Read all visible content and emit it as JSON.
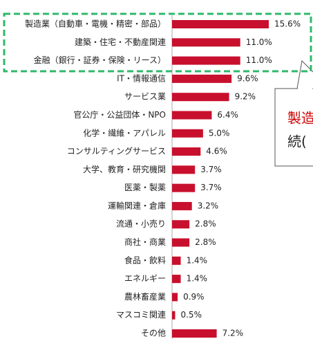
{
  "chart_data": {
    "type": "bar",
    "orientation": "horizontal",
    "color": "#c8102e",
    "categories": [
      "製造業（自動車・電機・精密・部品）",
      "建築・住宅・不動産関連",
      "金融（銀行・証券・保険・リース）",
      "IT・情報通信",
      "サービス業",
      "官公庁・公益団体・NPO",
      "化学・繊維・アパレル",
      "コンサルティングサービス",
      "大学、教育・研究機関",
      "医薬・製薬",
      "運輸関連・倉庫",
      "流通・小売り",
      "商社・商業",
      "食品・飲料",
      "エネルギー",
      "農林畜産業",
      "マスコミ関連",
      "その他"
    ],
    "values": [
      15.6,
      11.0,
      11.0,
      9.6,
      9.2,
      6.4,
      5.0,
      4.6,
      3.7,
      3.7,
      3.2,
      2.8,
      2.8,
      1.4,
      1.4,
      0.9,
      0.5,
      7.2
    ],
    "value_labels": [
      "15.6%",
      "11.0%",
      "11.0%",
      "9.6%",
      "9.2%",
      "6.4%",
      "5.0%",
      "4.6%",
      "3.7%",
      "3.7%",
      "3.2%",
      "2.8%",
      "2.8%",
      "1.4%",
      "1.4%",
      "0.9%",
      "0.5%",
      "7.2%"
    ],
    "annotations": [
      "製造",
      "続("
    ]
  }
}
